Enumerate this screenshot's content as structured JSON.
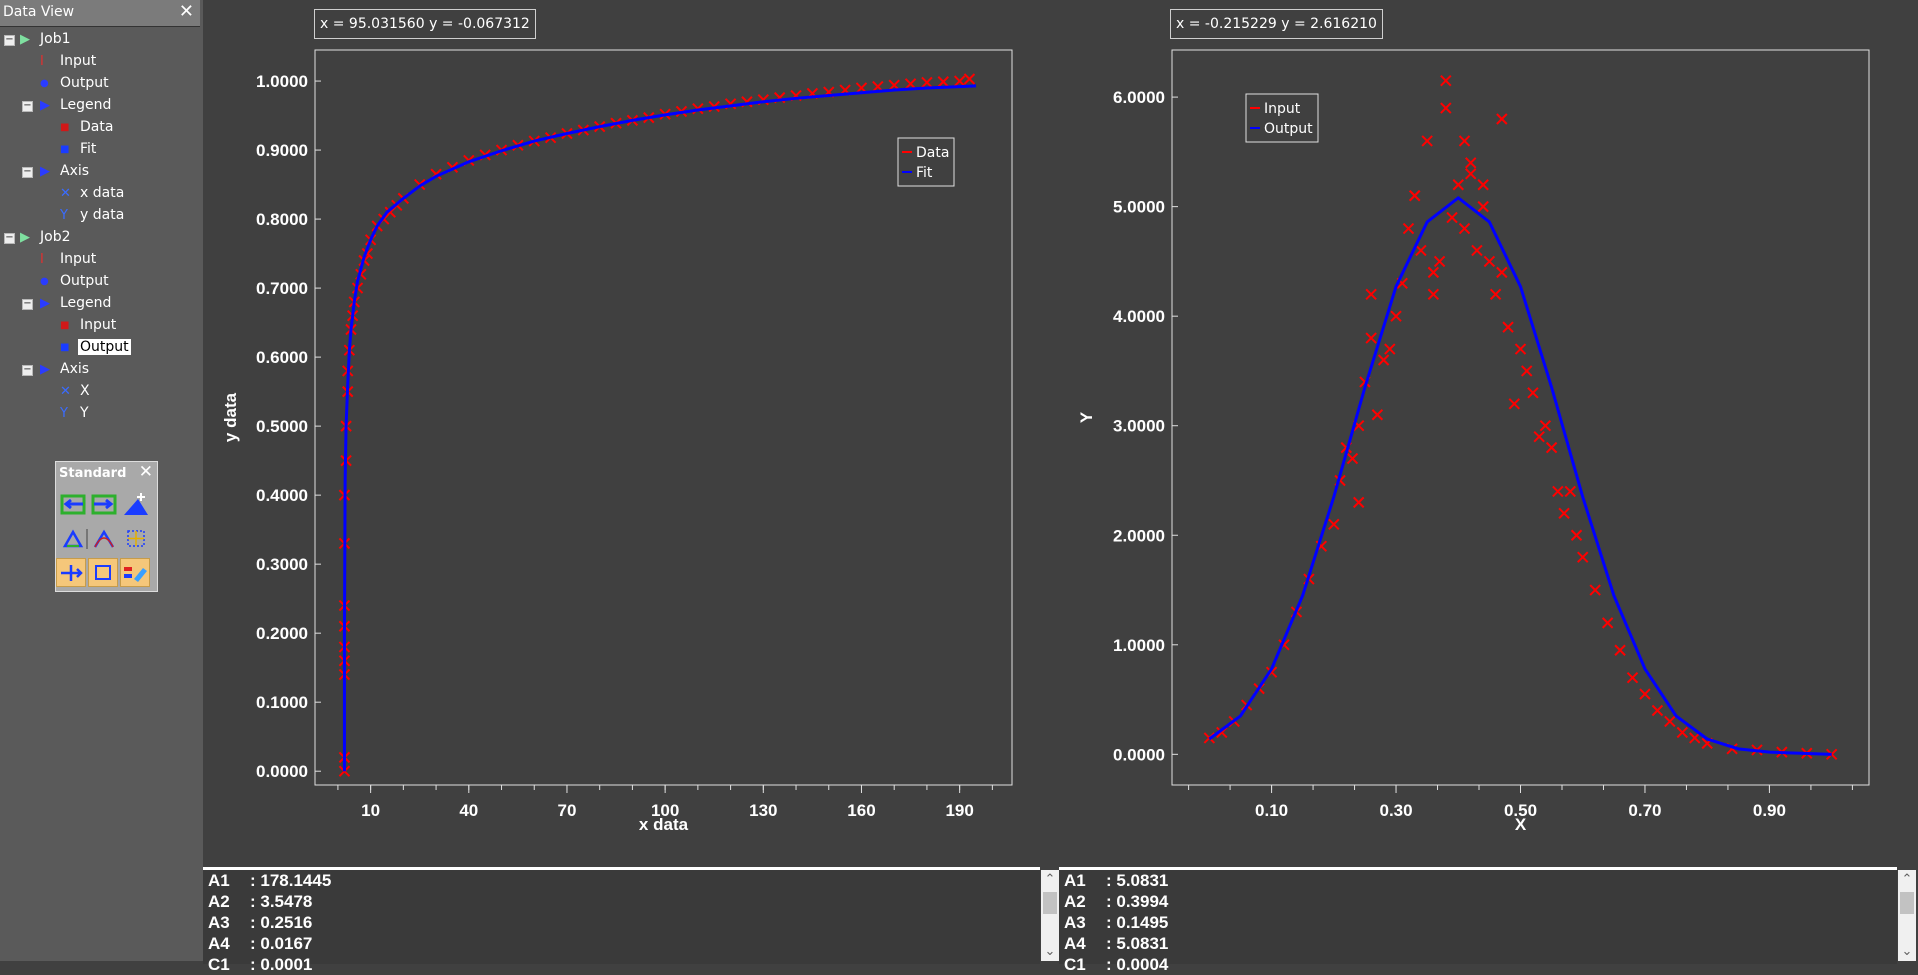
{
  "sidebar": {
    "title": "Data View",
    "close": "✕",
    "items": [
      {
        "label": "Job1",
        "icon": "play-icon",
        "level": 0,
        "expander": "−"
      },
      {
        "label": "Input",
        "icon": "input-icon",
        "level": 1
      },
      {
        "label": "Output",
        "icon": "output-icon",
        "level": 1
      },
      {
        "label": "Legend",
        "icon": "play-icon",
        "level": 1,
        "expander": "−"
      },
      {
        "label": "Data",
        "icon": "data-icon",
        "level": 2
      },
      {
        "label": "Fit",
        "icon": "fit-icon",
        "level": 2
      },
      {
        "label": "Axis",
        "icon": "play-icon",
        "level": 1,
        "expander": "−"
      },
      {
        "label": "x data",
        "icon": "x-axis-icon",
        "level": 2
      },
      {
        "label": "y data",
        "icon": "y-axis-icon",
        "level": 2
      },
      {
        "label": "Job2",
        "icon": "play-icon",
        "level": 0,
        "expander": "−"
      },
      {
        "label": "Input",
        "icon": "input-icon",
        "level": 1
      },
      {
        "label": "Output",
        "icon": "output-icon",
        "level": 1
      },
      {
        "label": "Legend",
        "icon": "play-icon",
        "level": 1,
        "expander": "−"
      },
      {
        "label": "Input",
        "icon": "data-icon",
        "level": 2
      },
      {
        "label": "Output",
        "icon": "fit-icon",
        "level": 2,
        "selected": true
      },
      {
        "label": "Axis",
        "icon": "play-icon",
        "level": 1,
        "expander": "−"
      },
      {
        "label": "X",
        "icon": "x-axis-icon",
        "level": 2
      },
      {
        "label": "Y",
        "icon": "y-axis-icon",
        "level": 2
      }
    ]
  },
  "toolbar": {
    "title": "Standard",
    "close": "✕",
    "buttons": [
      "import-icon",
      "export-icon",
      "add-point-icon",
      "triangle-icon",
      "curve-icon",
      "grid-select-icon",
      "move-icon",
      "rectangle-icon",
      "legend-icon"
    ]
  },
  "colors": {
    "data": "#ff0000",
    "fit": "#0000ff",
    "plot_bg": "#404040",
    "axis": "#ffffff"
  },
  "plots": [
    {
      "coord_readout": "x = 95.031560 y = -0.067312",
      "legend": [
        "Data",
        "Fit"
      ],
      "chart_data": {
        "type": "scatter",
        "xlabel": "x data",
        "ylabel": "y data",
        "x_ticks": [
          "10",
          "40",
          "70",
          "100",
          "130",
          "160",
          "190"
        ],
        "y_ticks": [
          "0.0000",
          "0.1000",
          "0.2000",
          "0.3000",
          "0.4000",
          "0.5000",
          "0.6000",
          "0.7000",
          "0.8000",
          "0.9000",
          "1.0000"
        ],
        "xlim": [
          -7,
          206
        ],
        "ylim": [
          -0.02,
          1.045
        ],
        "series": [
          {
            "name": "Data",
            "kind": "markers",
            "color": "#ff0000",
            "x": [
              2,
              2,
              2,
              2,
              2,
              2,
              2,
              2,
              2,
              2.5,
              2.5,
              3,
              3,
              3.5,
              4,
              4.5,
              5,
              6,
              7,
              8,
              9,
              10,
              12,
              14,
              16,
              18,
              20,
              25,
              30,
              35,
              40,
              45,
              50,
              55,
              60,
              65,
              70,
              75,
              80,
              85,
              90,
              95,
              100,
              105,
              110,
              115,
              120,
              125,
              130,
              135,
              140,
              145,
              150,
              155,
              160,
              165,
              170,
              175,
              180,
              185,
              190,
              193
            ],
            "y": [
              0.0,
              0.02,
              0.14,
              0.16,
              0.18,
              0.21,
              0.24,
              0.33,
              0.4,
              0.45,
              0.5,
              0.55,
              0.58,
              0.61,
              0.64,
              0.66,
              0.68,
              0.7,
              0.72,
              0.74,
              0.75,
              0.77,
              0.79,
              0.8,
              0.81,
              0.82,
              0.83,
              0.85,
              0.865,
              0.875,
              0.885,
              0.893,
              0.9,
              0.907,
              0.913,
              0.918,
              0.924,
              0.929,
              0.934,
              0.939,
              0.943,
              0.947,
              0.952,
              0.956,
              0.96,
              0.963,
              0.967,
              0.97,
              0.973,
              0.976,
              0.979,
              0.982,
              0.984,
              0.987,
              0.99,
              0.992,
              0.994,
              0.996,
              0.998,
              0.999,
              1.0,
              1.003
            ]
          },
          {
            "name": "Fit",
            "kind": "line",
            "color": "#0000ff",
            "x": [
              2,
              2,
              2.2,
              2.5,
              3,
              3.5,
              4,
              5,
              6,
              8,
              10,
              12,
              15,
              20,
              25,
              30,
              40,
              50,
              60,
              70,
              80,
              90,
              100,
              110,
              120,
              130,
              140,
              150,
              160,
              170,
              180,
              190,
              195
            ],
            "y": [
              0.0,
              0.2,
              0.42,
              0.5,
              0.56,
              0.61,
              0.64,
              0.68,
              0.71,
              0.745,
              0.77,
              0.79,
              0.81,
              0.83,
              0.848,
              0.862,
              0.883,
              0.899,
              0.913,
              0.924,
              0.934,
              0.943,
              0.951,
              0.958,
              0.964,
              0.97,
              0.975,
              0.979,
              0.983,
              0.987,
              0.99,
              0.992,
              0.993
            ]
          }
        ]
      }
    },
    {
      "coord_readout": "x = -0.215229 y = 2.616210",
      "legend": [
        "Input",
        "Output"
      ],
      "chart_data": {
        "type": "scatter",
        "xlabel": "X",
        "ylabel": "Y",
        "x_ticks": [
          "0.10",
          "0.30",
          "0.50",
          "0.70",
          "0.90"
        ],
        "y_ticks": [
          "0.0000",
          "1.0000",
          "2.0000",
          "3.0000",
          "4.0000",
          "5.0000",
          "6.0000"
        ],
        "xlim": [
          -0.06,
          1.06
        ],
        "ylim": [
          -0.28,
          6.43
        ],
        "series": [
          {
            "name": "Input",
            "kind": "markers",
            "color": "#ff0000",
            "x": [
              0.0,
              0.02,
              0.04,
              0.06,
              0.08,
              0.1,
              0.12,
              0.14,
              0.16,
              0.18,
              0.2,
              0.21,
              0.22,
              0.23,
              0.24,
              0.25,
              0.26,
              0.27,
              0.28,
              0.29,
              0.3,
              0.31,
              0.32,
              0.33,
              0.34,
              0.35,
              0.36,
              0.37,
              0.38,
              0.39,
              0.4,
              0.41,
              0.42,
              0.43,
              0.44,
              0.45,
              0.46,
              0.47,
              0.48,
              0.49,
              0.5,
              0.51,
              0.52,
              0.53,
              0.54,
              0.55,
              0.56,
              0.57,
              0.58,
              0.59,
              0.6,
              0.62,
              0.64,
              0.66,
              0.68,
              0.7,
              0.72,
              0.74,
              0.76,
              0.78,
              0.8,
              0.84,
              0.88,
              0.92,
              0.96,
              1.0,
              0.26,
              0.33,
              0.38,
              0.41,
              0.44,
              0.47,
              0.24,
              0.36,
              0.42
            ],
            "y": [
              0.15,
              0.2,
              0.3,
              0.45,
              0.6,
              0.75,
              1.0,
              1.3,
              1.6,
              1.9,
              2.1,
              2.5,
              2.8,
              2.7,
              3.0,
              3.4,
              3.8,
              3.1,
              3.6,
              3.7,
              4.0,
              4.3,
              4.8,
              5.1,
              4.6,
              5.6,
              4.4,
              4.5,
              6.15,
              4.9,
              5.2,
              4.8,
              5.4,
              4.6,
              5.0,
              4.5,
              4.2,
              4.4,
              3.9,
              3.2,
              3.7,
              3.5,
              3.3,
              2.9,
              3.0,
              2.8,
              2.4,
              2.2,
              2.4,
              2.0,
              1.8,
              1.5,
              1.2,
              0.95,
              0.7,
              0.55,
              0.4,
              0.3,
              0.2,
              0.15,
              0.1,
              0.05,
              0.04,
              0.02,
              0.01,
              0.0,
              4.2,
              5.1,
              5.9,
              5.6,
              5.2,
              5.8,
              2.3,
              4.2,
              5.3
            ]
          },
          {
            "name": "Output",
            "kind": "line",
            "color": "#0000ff",
            "x": [
              0.0,
              0.05,
              0.1,
              0.15,
              0.2,
              0.25,
              0.3,
              0.35,
              0.4,
              0.45,
              0.5,
              0.55,
              0.6,
              0.65,
              0.7,
              0.75,
              0.8,
              0.85,
              0.9,
              0.95,
              1.0
            ],
            "y": [
              0.14,
              0.35,
              0.78,
              1.45,
              2.35,
              3.35,
              4.27,
              4.86,
              5.08,
              4.86,
              4.27,
              3.35,
              2.35,
              1.45,
              0.78,
              0.35,
              0.14,
              0.05,
              0.02,
              0.01,
              0.0
            ]
          }
        ]
      }
    }
  ],
  "panes": [
    {
      "lines": [
        {
          "key": "A1",
          "value": ": 178.1445"
        },
        {
          "key": "A2",
          "value": ": 3.5478"
        },
        {
          "key": "A3",
          "value": ": 0.2516"
        },
        {
          "key": "A4",
          "value": ": 0.0167"
        },
        {
          "key": "C1",
          "value": ": 0.0001"
        }
      ]
    },
    {
      "lines": [
        {
          "key": "A1",
          "value": ": 5.0831"
        },
        {
          "key": "A2",
          "value": ": 0.3994"
        },
        {
          "key": "A3",
          "value": ": 0.1495"
        },
        {
          "key": "A4",
          "value": ": 5.0831"
        },
        {
          "key": "C1",
          "value": ": 0.0004"
        }
      ]
    }
  ]
}
